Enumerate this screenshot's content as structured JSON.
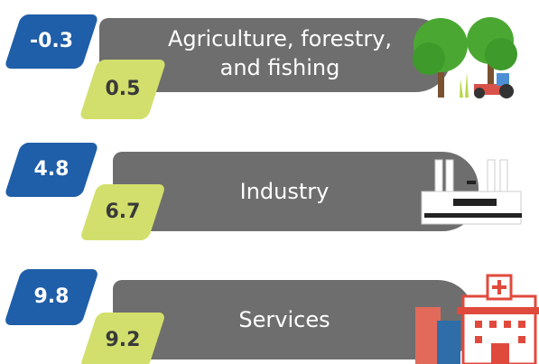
{
  "rows": [
    {
      "label": "Agriculture, forestry, and fishing",
      "value_a": -0.3,
      "value_b": 0.5
    },
    {
      "label": "Industry",
      "value_a": 4.8,
      "value_b": 6.7
    },
    {
      "label": "Services",
      "value_a": 9.8,
      "value_b": 9.2
    }
  ]
}
